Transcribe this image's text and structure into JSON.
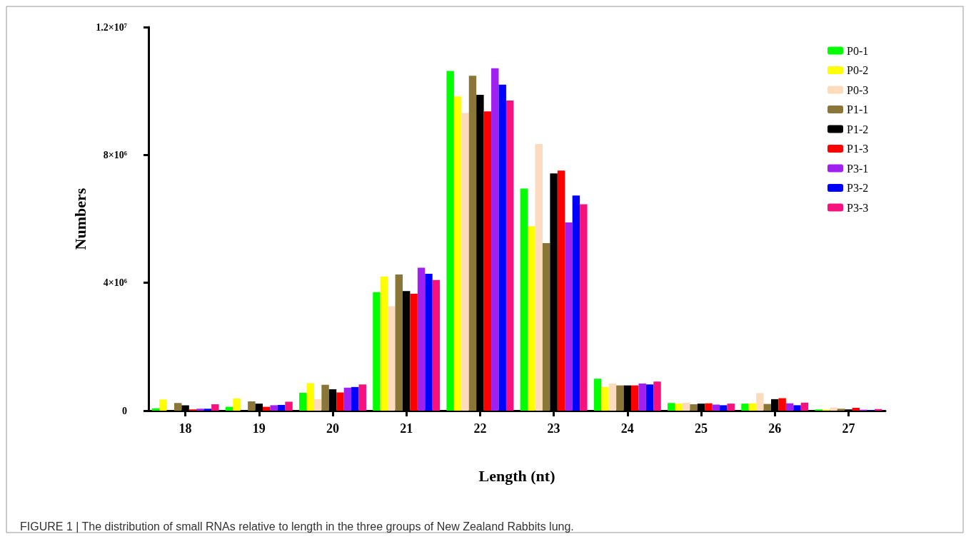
{
  "chart_data": {
    "type": "bar",
    "xlabel": "Length (nt)",
    "ylabel": "Numbers",
    "categories": [
      "18",
      "19",
      "20",
      "21",
      "22",
      "23",
      "24",
      "25",
      "26",
      "27"
    ],
    "ylim": [
      0,
      12000000
    ],
    "yticks": [
      0,
      {
        "value": 4000000,
        "label": "4×10⁶"
      },
      {
        "value": 8000000,
        "label": "8×10⁶"
      },
      {
        "value": 12000000,
        "label": "1.2×10⁷"
      }
    ],
    "grid": false,
    "legend": "top right",
    "annotations": [
      "FIGURE 1 | The distribution of small RNAs relative to length in the three groups of New Zealand Rabbits lung."
    ],
    "series": [
      {
        "name": "P0-1",
        "color": "#00ff00",
        "values": [
          70000,
          120000,
          560000,
          3710000,
          10630000,
          6950000,
          1000000,
          240000,
          220000,
          40000
        ]
      },
      {
        "name": "P0-2",
        "color": "#ffff00",
        "values": [
          350000,
          380000,
          860000,
          4200000,
          9830000,
          5770000,
          740000,
          220000,
          230000,
          30000
        ]
      },
      {
        "name": "P0-3",
        "color": "#fddcbd",
        "values": [
          null,
          null,
          360000,
          3270000,
          9310000,
          8340000,
          850000,
          250000,
          550000,
          100000
        ]
      },
      {
        "name": "P1-1",
        "color": "#8a7637",
        "values": [
          240000,
          290000,
          810000,
          4260000,
          10480000,
          5240000,
          790000,
          200000,
          210000,
          60000
        ]
      },
      {
        "name": "P1-2",
        "color": "#000000",
        "values": [
          170000,
          220000,
          670000,
          3740000,
          9880000,
          7420000,
          790000,
          220000,
          360000,
          40000
        ]
      },
      {
        "name": "P1-3",
        "color": "#ff0000",
        "values": [
          40000,
          120000,
          570000,
          3660000,
          9360000,
          7510000,
          790000,
          230000,
          390000,
          90000
        ]
      },
      {
        "name": "P3-1",
        "color": "#a020f0",
        "values": [
          60000,
          170000,
          720000,
          4470000,
          10710000,
          5890000,
          850000,
          190000,
          230000,
          30000
        ]
      },
      {
        "name": "P3-2",
        "color": "#0000ff",
        "values": [
          60000,
          180000,
          740000,
          4280000,
          10200000,
          6730000,
          820000,
          170000,
          170000,
          20000
        ]
      },
      {
        "name": "P3-3",
        "color": "#f5127d",
        "values": [
          200000,
          280000,
          820000,
          4090000,
          9700000,
          6460000,
          910000,
          220000,
          250000,
          50000
        ]
      }
    ]
  }
}
